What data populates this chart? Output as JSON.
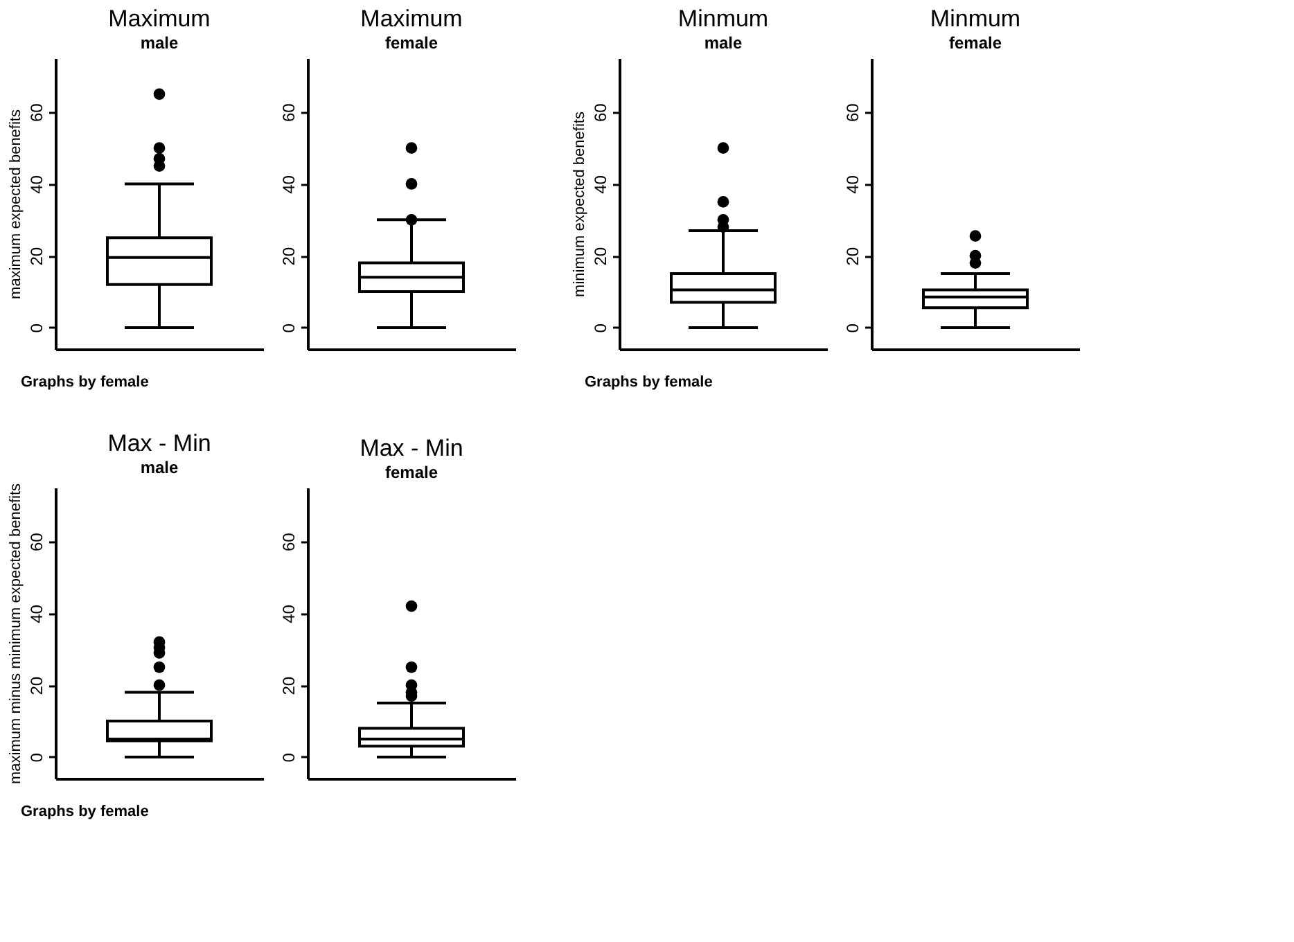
{
  "chart_data": [
    {
      "type": "box",
      "title": "Maximum",
      "subtitle": "male",
      "ylabel": "maximum expected benefits",
      "categories": [
        null
      ],
      "ylim": [
        -6,
        75
      ],
      "yticks": [
        0,
        20,
        40,
        60
      ],
      "tick_labels": "y",
      "annotations": [
        "Graphs by female"
      ],
      "boxes": [
        {
          "low": 0,
          "q1": 12,
          "median": 19.5,
          "q3": 25,
          "high": 40,
          "outliers": [
            45,
            47,
            50,
            65
          ]
        }
      ]
    },
    {
      "type": "box",
      "title": "Maximum",
      "subtitle": "female",
      "categories": [
        null
      ],
      "ylim": [
        -6,
        75
      ],
      "yticks": [
        0,
        20,
        40,
        60
      ],
      "tick_labels": "y",
      "boxes": [
        {
          "low": 0,
          "q1": 10,
          "median": 14,
          "q3": 18,
          "high": 30,
          "outliers": [
            30,
            40,
            50
          ]
        }
      ]
    },
    {
      "type": "box",
      "title": "Minmum",
      "subtitle": "male",
      "ylabel": "minimum expected benefits",
      "categories": [
        null
      ],
      "ylim": [
        -6,
        75
      ],
      "yticks": [
        0,
        20,
        40,
        60
      ],
      "tick_labels": "y",
      "annotations": [
        "Graphs by female"
      ],
      "boxes": [
        {
          "low": 0,
          "q1": 7,
          "median": 10.5,
          "q3": 15,
          "high": 27,
          "outliers": [
            28,
            30,
            35,
            50
          ]
        }
      ]
    },
    {
      "type": "box",
      "title": "Minmum",
      "subtitle": "female",
      "categories": [
        null
      ],
      "ylim": [
        -6,
        75
      ],
      "yticks": [
        0,
        20,
        40,
        60
      ],
      "tick_labels": "y",
      "boxes": [
        {
          "low": 0,
          "q1": 5.5,
          "median": 8.5,
          "q3": 10.5,
          "high": 15,
          "outliers": [
            18,
            20,
            25.5
          ]
        }
      ]
    },
    {
      "type": "box",
      "title": "Max - Min",
      "subtitle": "male",
      "ylabel": "maximum minus minimum expected benefits",
      "categories": [
        null
      ],
      "ylim": [
        -6,
        75
      ],
      "yticks": [
        0,
        20,
        40,
        60
      ],
      "tick_labels": "y",
      "annotations": [
        "Graphs by female"
      ],
      "boxes": [
        {
          "low": 0,
          "q1": 4.5,
          "median": 5,
          "q3": 10,
          "high": 18,
          "outliers": [
            20,
            25,
            29,
            30.5,
            32
          ]
        }
      ]
    },
    {
      "type": "box",
      "title": "Max - Min",
      "subtitle": "female",
      "categories": [
        null
      ],
      "ylim": [
        -6,
        75
      ],
      "yticks": [
        0,
        20,
        40,
        60
      ],
      "tick_labels": "y",
      "boxes": [
        {
          "low": 0,
          "q1": 3,
          "median": 5,
          "q3": 8,
          "high": 15,
          "outliers": [
            17,
            18,
            20,
            25,
            42
          ]
        }
      ]
    }
  ]
}
